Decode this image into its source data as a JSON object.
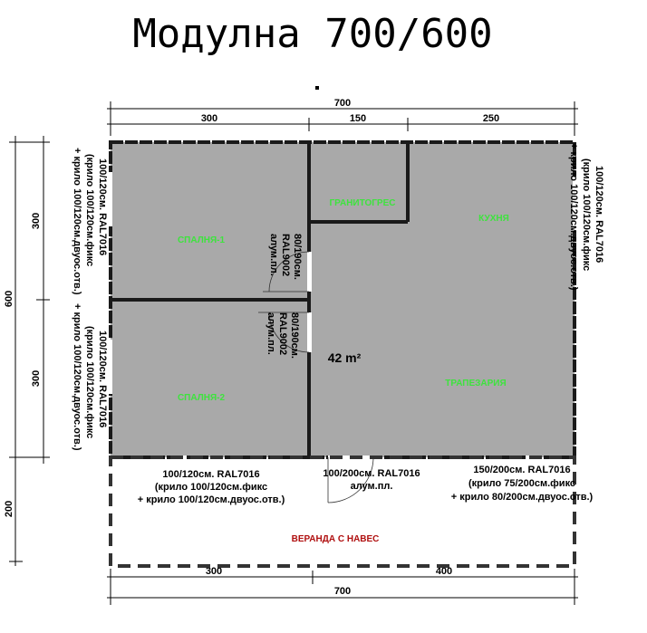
{
  "title": "Модулна 700/600",
  "dimensions": {
    "top_total": "700",
    "top_segments": [
      "300",
      "150",
      "250"
    ],
    "bottom_segments": [
      "300",
      "400"
    ],
    "bottom_total": "700",
    "left_total": "600",
    "left_segments": [
      "300",
      "300"
    ],
    "veranda_depth": "200"
  },
  "rooms": {
    "bedroom1": "СПАЛНЯ-1",
    "bedroom2": "СПАЛНЯ-2",
    "bathroom": "ГРАНИТОГРЕС",
    "kitchen": "КУХНЯ",
    "dining": "ТРАПЕЗАРИЯ",
    "veranda": "ВЕРАНДА С НАВЕС",
    "area": "42 m²"
  },
  "doors": {
    "interior1": [
      "80/190см.",
      "RAL9002",
      "алум.пл."
    ],
    "interior2": [
      "80/190см.",
      "RAL9002",
      "алум.пл."
    ],
    "entrance": [
      "100/200см. RAL7016",
      "алум.пл."
    ]
  },
  "windows": {
    "left_top": [
      "100/120см. RAL7016",
      "(крило 100/120см.фикс",
      "+ крило 100/120см.двуос.отв.)"
    ],
    "left_bottom": [
      "100/120см. RAL7016",
      "(крило 100/120см.фикс",
      "+ крило 100/120см.двуос.отв.)"
    ],
    "right": [
      "100/120см. RAL7016",
      "(крило 100/120см.фикс",
      "+ крило 100/120см.двуос.отв.)"
    ],
    "bottom_left": [
      "100/120см. RAL7016",
      "(крило 100/120см.фикс",
      "+ крило 100/120см.двуос.отв.)"
    ],
    "bottom_right": [
      "150/200см. RAL7016",
      "(крило 75/200см.фикс",
      "+ крило 80/200см.двуос.отв.)"
    ]
  },
  "colors": {
    "floor": "#a9a9a9",
    "room_label": "#3ee33e",
    "veranda_label": "#b01010"
  }
}
